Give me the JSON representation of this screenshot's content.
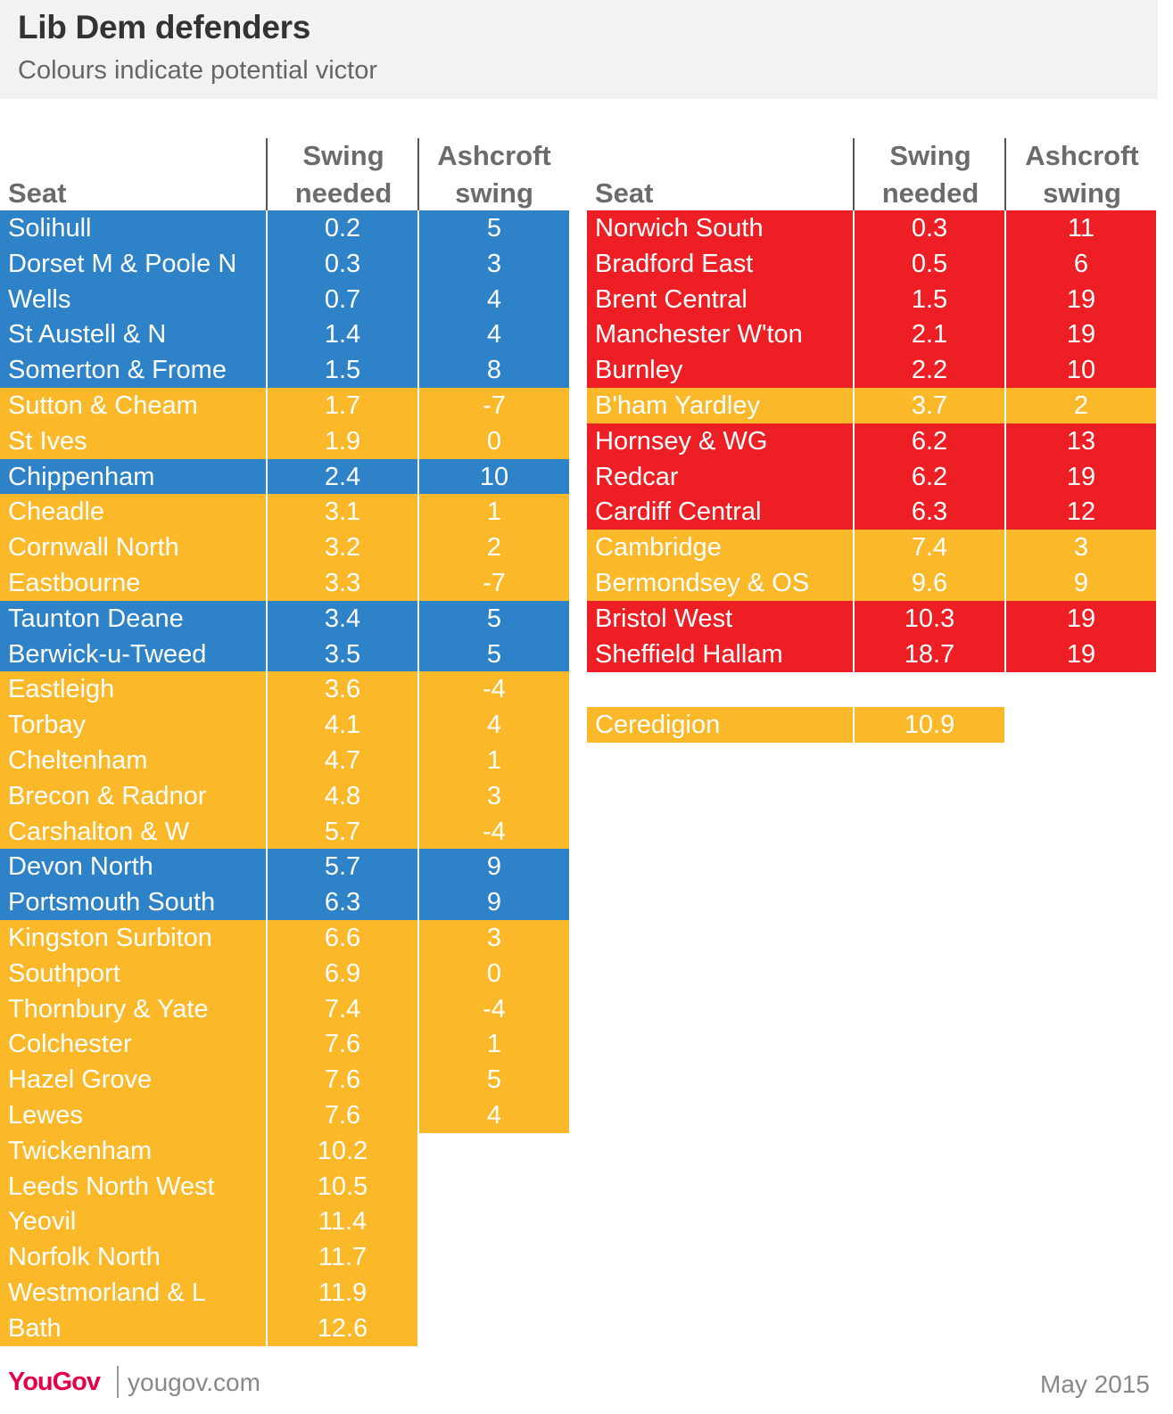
{
  "title": "Lib Dem defenders",
  "subtitle": "Colours indicate potential victor",
  "headers": {
    "seat": "Seat",
    "swing_needed": [
      "Swing",
      "needed"
    ],
    "ashcroft": [
      "Ashcroft",
      "swing"
    ]
  },
  "colors": {
    "blue": "#2d82c8",
    "orange": "#fbb828",
    "red": "#ed1f24"
  },
  "footer": {
    "logo": "YouGov",
    "url": "yougov.com",
    "date": "May 2015"
  },
  "chart_data": {
    "type": "table",
    "columns": [
      "Seat",
      "Swing needed",
      "Ashcroft swing"
    ],
    "left_table": [
      {
        "seat": "Solihull",
        "swing_needed": "0.2",
        "ashcroft": "5",
        "color": "blue"
      },
      {
        "seat": "Dorset M & Poole N",
        "swing_needed": "0.3",
        "ashcroft": "3",
        "color": "blue"
      },
      {
        "seat": "Wells",
        "swing_needed": "0.7",
        "ashcroft": "4",
        "color": "blue"
      },
      {
        "seat": "St Austell & N",
        "swing_needed": "1.4",
        "ashcroft": "4",
        "color": "blue"
      },
      {
        "seat": "Somerton & Frome",
        "swing_needed": "1.5",
        "ashcroft": "8",
        "color": "blue"
      },
      {
        "seat": "Sutton & Cheam",
        "swing_needed": "1.7",
        "ashcroft": "-7",
        "color": "orange"
      },
      {
        "seat": "St Ives",
        "swing_needed": "1.9",
        "ashcroft": "0",
        "color": "orange"
      },
      {
        "seat": "Chippenham",
        "swing_needed": "2.4",
        "ashcroft": "10",
        "color": "blue"
      },
      {
        "seat": "Cheadle",
        "swing_needed": "3.1",
        "ashcroft": "1",
        "color": "orange"
      },
      {
        "seat": "Cornwall North",
        "swing_needed": "3.2",
        "ashcroft": "2",
        "color": "orange"
      },
      {
        "seat": "Eastbourne",
        "swing_needed": "3.3",
        "ashcroft": "-7",
        "color": "orange"
      },
      {
        "seat": "Taunton Deane",
        "swing_needed": "3.4",
        "ashcroft": "5",
        "color": "blue"
      },
      {
        "seat": "Berwick-u-Tweed",
        "swing_needed": "3.5",
        "ashcroft": "5",
        "color": "blue"
      },
      {
        "seat": "Eastleigh",
        "swing_needed": "3.6",
        "ashcroft": "-4",
        "color": "orange"
      },
      {
        "seat": "Torbay",
        "swing_needed": "4.1",
        "ashcroft": "4",
        "color": "orange"
      },
      {
        "seat": "Cheltenham",
        "swing_needed": "4.7",
        "ashcroft": "1",
        "color": "orange"
      },
      {
        "seat": "Brecon & Radnor",
        "swing_needed": "4.8",
        "ashcroft": "3",
        "color": "orange"
      },
      {
        "seat": "Carshalton & W",
        "swing_needed": "5.7",
        "ashcroft": "-4",
        "color": "orange"
      },
      {
        "seat": "Devon North",
        "swing_needed": "5.7",
        "ashcroft": "9",
        "color": "blue"
      },
      {
        "seat": "Portsmouth South",
        "swing_needed": "6.3",
        "ashcroft": "9",
        "color": "blue"
      },
      {
        "seat": "Kingston Surbiton",
        "swing_needed": "6.6",
        "ashcroft": "3",
        "color": "orange"
      },
      {
        "seat": "Southport",
        "swing_needed": "6.9",
        "ashcroft": "0",
        "color": "orange"
      },
      {
        "seat": "Thornbury & Yate",
        "swing_needed": "7.4",
        "ashcroft": "-4",
        "color": "orange"
      },
      {
        "seat": "Colchester",
        "swing_needed": "7.6",
        "ashcroft": "1",
        "color": "orange"
      },
      {
        "seat": "Hazel Grove",
        "swing_needed": "7.6",
        "ashcroft": "5",
        "color": "orange"
      },
      {
        "seat": "Lewes",
        "swing_needed": "7.6",
        "ashcroft": "4",
        "color": "orange"
      },
      {
        "seat": "Twickenham",
        "swing_needed": "10.2",
        "ashcroft": null,
        "color": "orange"
      },
      {
        "seat": "Leeds North West",
        "swing_needed": "10.5",
        "ashcroft": null,
        "color": "orange"
      },
      {
        "seat": "Yeovil",
        "swing_needed": "11.4",
        "ashcroft": null,
        "color": "orange"
      },
      {
        "seat": "Norfolk North",
        "swing_needed": "11.7",
        "ashcroft": null,
        "color": "orange"
      },
      {
        "seat": "Westmorland & L",
        "swing_needed": "11.9",
        "ashcroft": null,
        "color": "orange"
      },
      {
        "seat": "Bath",
        "swing_needed": "12.6",
        "ashcroft": null,
        "color": "orange"
      }
    ],
    "right_table": [
      {
        "seat": "Norwich South",
        "swing_needed": "0.3",
        "ashcroft": "11",
        "color": "red"
      },
      {
        "seat": "Bradford East",
        "swing_needed": "0.5",
        "ashcroft": "6",
        "color": "red"
      },
      {
        "seat": "Brent Central",
        "swing_needed": "1.5",
        "ashcroft": "19",
        "color": "red"
      },
      {
        "seat": "Manchester W'ton",
        "swing_needed": "2.1",
        "ashcroft": "19",
        "color": "red"
      },
      {
        "seat": "Burnley",
        "swing_needed": "2.2",
        "ashcroft": "10",
        "color": "red"
      },
      {
        "seat": "B'ham Yardley",
        "swing_needed": "3.7",
        "ashcroft": "2",
        "color": "orange"
      },
      {
        "seat": "Hornsey & WG",
        "swing_needed": "6.2",
        "ashcroft": "13",
        "color": "red"
      },
      {
        "seat": "Redcar",
        "swing_needed": "6.2",
        "ashcroft": "19",
        "color": "red"
      },
      {
        "seat": "Cardiff Central",
        "swing_needed": "6.3",
        "ashcroft": "12",
        "color": "red"
      },
      {
        "seat": "Cambridge",
        "swing_needed": "7.4",
        "ashcroft": "3",
        "color": "orange"
      },
      {
        "seat": "Bermondsey & OS",
        "swing_needed": "9.6",
        "ashcroft": "9",
        "color": "orange"
      },
      {
        "seat": "Bristol West",
        "swing_needed": "10.3",
        "ashcroft": "19",
        "color": "red"
      },
      {
        "seat": "Sheffield Hallam",
        "swing_needed": "18.7",
        "ashcroft": "19",
        "color": "red"
      }
    ],
    "extra_table": [
      {
        "seat": "Ceredigion",
        "swing_needed": "10.9",
        "ashcroft": null,
        "color": "orange"
      }
    ]
  }
}
